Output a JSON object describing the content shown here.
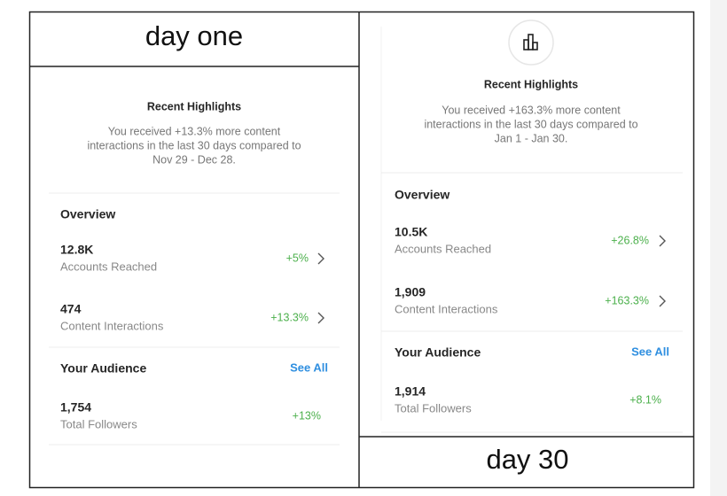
{
  "panels": [
    {
      "label": "day one",
      "highlights": {
        "title": "Recent Highlights",
        "lines": [
          "You received +13.3% more content",
          "interactions in the last 30 days compared to",
          "Nov 29 - Dec 28."
        ]
      },
      "overview": {
        "title": "Overview",
        "metrics": [
          {
            "value": "12.8K",
            "label": "Accounts Reached",
            "change": "+5%"
          },
          {
            "value": "474",
            "label": "Content Interactions",
            "change": "+13.3%"
          }
        ]
      },
      "audience": {
        "title": "Your Audience",
        "link": "See All",
        "metrics": [
          {
            "value": "1,754",
            "label": "Total Followers",
            "change": "+13%"
          }
        ]
      }
    },
    {
      "label": "day 30",
      "highlights": {
        "title": "Recent Highlights",
        "lines": [
          "You received +163.3% more content",
          "interactions in the last 30 days compared to",
          "Jan 1 - Jan 30."
        ]
      },
      "overview": {
        "title": "Overview",
        "metrics": [
          {
            "value": "10.5K",
            "label": "Accounts Reached",
            "change": "+26.8%"
          },
          {
            "value": "1,909",
            "label": "Content Interactions",
            "change": "+163.3%"
          }
        ]
      },
      "audience": {
        "title": "Your Audience",
        "link": "See All",
        "metrics": [
          {
            "value": "1,914",
            "label": "Total Followers",
            "change": "+8.1%"
          }
        ]
      }
    }
  ]
}
